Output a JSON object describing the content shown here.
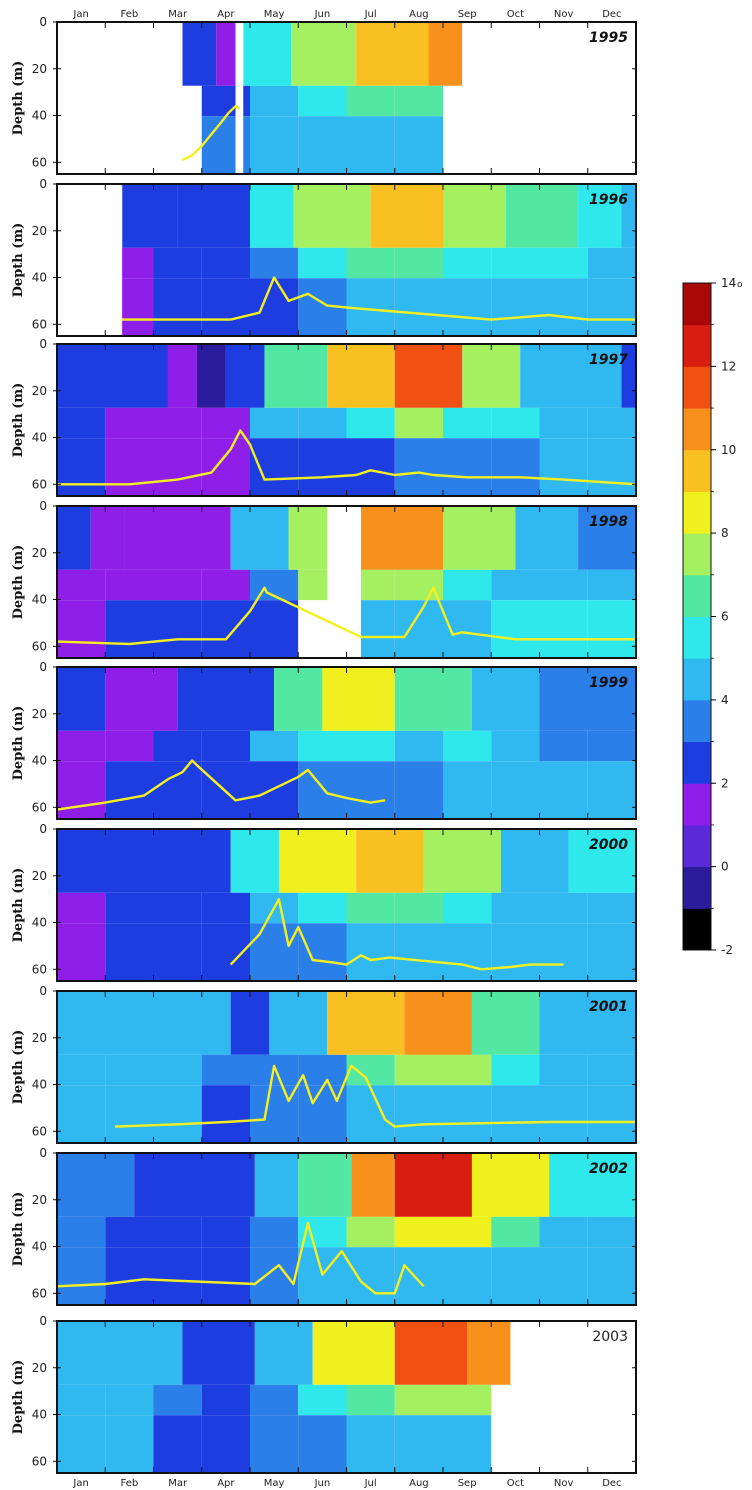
{
  "chart_data": {
    "type": "heatmap",
    "description_axes": {
      "xlabel": "",
      "ylabel": "Depth (m)",
      "ylim": [
        0,
        65
      ]
    },
    "months": [
      "Jan",
      "Feb",
      "Mar",
      "Apr",
      "May",
      "Jun",
      "Jul",
      "Aug",
      "Sep",
      "Oct",
      "Nov",
      "Dec"
    ],
    "depth_ticks": [
      0,
      20,
      40,
      60
    ],
    "colorbar": {
      "min": -2,
      "max": 14,
      "step": 1,
      "tick_labels": [
        "14",
        "12",
        "10",
        "8",
        "6",
        "4",
        "2",
        "0",
        "-2"
      ],
      "unit_label": "o",
      "colors": [
        "#000000",
        "#2a1c9a",
        "#5a2ad8",
        "#8e1ee8",
        "#1e3de0",
        "#2b7fe8",
        "#30b8f0",
        "#2ee8ec",
        "#52e8a4",
        "#a4f060",
        "#f0f01e",
        "#f8c020",
        "#f8901c",
        "#f05012",
        "#d81e10",
        "#a80808"
      ]
    },
    "panels": [
      {
        "year": "1995",
        "italic": true,
        "segments": [
          [
            0,
            2.6,
            null
          ],
          [
            2.6,
            3.3,
            2
          ],
          [
            3.3,
            3.7,
            1
          ],
          [
            3.7,
            3.86,
            null
          ],
          [
            3.86,
            4.85,
            5
          ],
          [
            4.85,
            6.2,
            7
          ],
          [
            6.2,
            7.7,
            9
          ],
          [
            7.7,
            8.4,
            10
          ],
          [
            8.4,
            12,
            null
          ]
        ],
        "bottom_hi": [
          1.5,
          2.5,
          2.5,
          3.5,
          4,
          4.3,
          4.6,
          4.9,
          null,
          null,
          null,
          null
        ],
        "line": [
          [
            2.6,
            59
          ],
          [
            2.8,
            57
          ],
          [
            3.0,
            53
          ],
          [
            3.2,
            48
          ],
          [
            3.4,
            43
          ],
          [
            3.55,
            39
          ],
          [
            3.7,
            36
          ],
          [
            3.78,
            37
          ]
        ]
      },
      {
        "year": "1996",
        "italic": true,
        "segments": [
          [
            0,
            1.35,
            null
          ],
          [
            1.35,
            2.5,
            2
          ],
          [
            2.5,
            4.0,
            2
          ],
          [
            4.0,
            4.9,
            5
          ],
          [
            4.9,
            6.5,
            7
          ],
          [
            6.5,
            8.0,
            9
          ],
          [
            8.0,
            9.3,
            7
          ],
          [
            9.3,
            10.8,
            6
          ],
          [
            10.8,
            11.7,
            5
          ],
          [
            11.7,
            12,
            4
          ]
        ],
        "bottom_hi": [
          null,
          1,
          2,
          2,
          2.5,
          3,
          4,
          4.3,
          4.6,
          4.8,
          4.9,
          4.9
        ],
        "line": [
          [
            1.35,
            58
          ],
          [
            2.2,
            58
          ],
          [
            2.9,
            58
          ],
          [
            3.6,
            58
          ],
          [
            4.2,
            55
          ],
          [
            4.5,
            40
          ],
          [
            4.8,
            50
          ],
          [
            5.2,
            47
          ],
          [
            5.6,
            52
          ],
          [
            6.1,
            53
          ],
          [
            9.0,
            58
          ],
          [
            10.2,
            56
          ],
          [
            11.0,
            58
          ],
          [
            12,
            58
          ]
        ]
      },
      {
        "year": "1997",
        "italic": true,
        "segments": [
          [
            0,
            2.3,
            2
          ],
          [
            2.3,
            2.9,
            1
          ],
          [
            2.9,
            3.5,
            -1
          ],
          [
            3.5,
            4.3,
            2
          ],
          [
            4.3,
            5.6,
            6
          ],
          [
            5.6,
            7.0,
            9
          ],
          [
            7.0,
            8.4,
            11
          ],
          [
            8.4,
            9.6,
            7
          ],
          [
            9.6,
            11.7,
            4
          ],
          [
            11.7,
            12,
            2
          ]
        ],
        "bottom_hi": [
          2,
          1.5,
          1,
          1,
          2,
          2,
          2.5,
          3,
          3.5,
          3.5,
          4,
          4.5
        ],
        "line": [
          [
            0,
            60
          ],
          [
            1.5,
            60
          ],
          [
            2.5,
            58
          ],
          [
            3.2,
            55
          ],
          [
            3.6,
            45
          ],
          [
            3.8,
            37
          ],
          [
            4.0,
            43
          ],
          [
            4.3,
            58
          ],
          [
            5.5,
            57
          ],
          [
            6.2,
            56
          ],
          [
            6.5,
            54
          ],
          [
            7.0,
            56
          ],
          [
            7.5,
            55
          ],
          [
            7.8,
            56
          ],
          [
            8.5,
            57
          ],
          [
            9.0,
            57
          ],
          [
            9.6,
            57
          ],
          [
            10.5,
            58
          ],
          [
            12,
            60
          ]
        ]
      },
      {
        "year": "1998",
        "italic": true,
        "segments": [
          [
            0,
            0.7,
            2
          ],
          [
            0.7,
            1.4,
            1
          ],
          [
            1.4,
            3.6,
            1
          ],
          [
            3.6,
            4.8,
            4
          ],
          [
            4.8,
            5.6,
            7
          ],
          [
            5.6,
            6.3,
            null
          ],
          [
            6.3,
            8.0,
            10
          ],
          [
            8.0,
            9.5,
            7
          ],
          [
            9.5,
            10.8,
            4
          ],
          [
            10.8,
            12,
            3
          ]
        ],
        "bottom_hi": [
          1.5,
          2,
          2,
          2,
          2.5,
          null,
          4.6,
          4.7,
          4.8,
          5,
          5,
          5
        ],
        "line": [
          [
            0,
            58
          ],
          [
            1.5,
            59
          ],
          [
            2.5,
            57
          ],
          [
            3.5,
            57
          ],
          [
            4.0,
            45
          ],
          [
            4.3,
            35
          ],
          [
            4.35,
            37
          ],
          [
            6.3,
            56
          ],
          [
            7.2,
            56
          ],
          [
            7.6,
            43
          ],
          [
            7.8,
            35
          ],
          [
            8.2,
            55
          ],
          [
            8.4,
            54
          ],
          [
            9.5,
            57
          ],
          [
            10.5,
            57
          ],
          [
            12,
            57
          ]
        ]
      },
      {
        "year": "1999",
        "italic": true,
        "segments": [
          [
            0,
            1.0,
            2
          ],
          [
            1.0,
            2.5,
            1
          ],
          [
            2.5,
            4.5,
            2
          ],
          [
            4.5,
            5.5,
            6
          ],
          [
            5.5,
            7.0,
            8
          ],
          [
            7.0,
            8.6,
            6
          ],
          [
            8.6,
            10.0,
            4
          ],
          [
            10.0,
            12,
            3
          ]
        ],
        "bottom_hi": [
          1.5,
          2,
          2,
          2,
          2.5,
          3,
          3.5,
          3.5,
          4,
          4.2,
          4.2,
          4.2
        ],
        "line": [
          [
            0,
            61
          ],
          [
            1.0,
            58
          ],
          [
            1.8,
            55
          ],
          [
            2.3,
            48
          ],
          [
            2.6,
            45
          ],
          [
            2.8,
            40
          ],
          [
            2.9,
            42
          ],
          [
            3.7,
            57
          ],
          [
            4.2,
            55
          ],
          [
            5.0,
            47
          ],
          [
            5.2,
            44
          ],
          [
            5.6,
            54
          ],
          [
            6.0,
            56
          ],
          [
            6.5,
            58
          ],
          [
            6.8,
            57
          ]
        ]
      },
      {
        "year": "2000",
        "italic": true,
        "segments": [
          [
            0,
            3.6,
            2
          ],
          [
            3.6,
            4.6,
            5
          ],
          [
            4.6,
            6.2,
            8
          ],
          [
            6.2,
            7.6,
            9
          ],
          [
            7.6,
            9.2,
            7
          ],
          [
            9.2,
            10.6,
            4
          ],
          [
            10.6,
            12,
            5
          ]
        ],
        "bottom_hi": [
          1.5,
          2,
          2,
          2,
          3,
          3,
          4,
          4.5,
          4.5,
          4.5,
          4.6,
          4.7
        ],
        "line": [
          [
            3.6,
            58
          ],
          [
            4.2,
            45
          ],
          [
            4.6,
            30
          ],
          [
            4.8,
            50
          ],
          [
            5.0,
            42
          ],
          [
            5.3,
            56
          ],
          [
            5.7,
            57
          ],
          [
            6.0,
            58
          ],
          [
            6.3,
            54
          ],
          [
            6.5,
            56
          ],
          [
            6.9,
            55
          ],
          [
            8.4,
            58
          ],
          [
            8.8,
            60
          ],
          [
            9.4,
            59
          ],
          [
            9.8,
            58
          ],
          [
            10.5,
            58
          ]
        ]
      },
      {
        "year": "2001",
        "italic": true,
        "segments": [
          [
            0,
            2.0,
            4
          ],
          [
            2.0,
            3.6,
            4
          ],
          [
            3.6,
            4.4,
            2
          ],
          [
            4.4,
            5.6,
            4
          ],
          [
            5.6,
            7.2,
            9
          ],
          [
            7.2,
            8.6,
            10
          ],
          [
            8.6,
            10.0,
            6
          ],
          [
            10.0,
            12,
            4
          ]
        ],
        "bottom_hi": [
          4.6,
          4.6,
          4.6,
          2,
          3,
          3.5,
          4.2,
          4.5,
          4.5,
          4.5,
          4.6,
          4.6
        ],
        "line": [
          [
            1.2,
            58
          ],
          [
            2.5,
            57
          ],
          [
            3.5,
            56
          ],
          [
            4.3,
            55
          ],
          [
            4.5,
            32
          ],
          [
            4.8,
            47
          ],
          [
            5.1,
            36
          ],
          [
            5.3,
            48
          ],
          [
            5.6,
            38
          ],
          [
            5.8,
            47
          ],
          [
            6.1,
            32
          ],
          [
            6.4,
            37
          ],
          [
            6.8,
            55
          ],
          [
            7.0,
            58
          ],
          [
            7.6,
            57
          ],
          [
            10.2,
            56
          ],
          [
            12,
            56
          ]
        ]
      },
      {
        "year": "2002",
        "italic": true,
        "segments": [
          [
            0,
            1.6,
            3
          ],
          [
            1.6,
            4.1,
            2
          ],
          [
            4.1,
            5.0,
            4
          ],
          [
            5.0,
            6.1,
            6
          ],
          [
            6.1,
            7.0,
            10
          ],
          [
            7.0,
            8.6,
            12
          ],
          [
            8.6,
            10.2,
            8
          ],
          [
            10.2,
            12,
            5
          ]
        ],
        "bottom_hi": [
          3,
          2.5,
          2,
          2,
          3.5,
          4.2,
          4.5,
          4.6,
          4.6,
          4.6,
          4.6,
          4.6
        ],
        "line": [
          [
            0,
            57
          ],
          [
            1.0,
            56
          ],
          [
            1.8,
            54
          ],
          [
            4.1,
            56
          ],
          [
            4.6,
            48
          ],
          [
            4.9,
            56
          ],
          [
            5.2,
            30
          ],
          [
            5.5,
            52
          ],
          [
            5.9,
            42
          ],
          [
            6.3,
            55
          ],
          [
            6.6,
            60
          ],
          [
            7.0,
            60
          ],
          [
            7.2,
            48
          ],
          [
            7.6,
            57
          ]
        ]
      },
      {
        "year": "2003",
        "italic": false,
        "segments": [
          [
            0,
            2.6,
            4
          ],
          [
            2.6,
            4.1,
            2
          ],
          [
            4.1,
            5.3,
            4
          ],
          [
            5.3,
            7.0,
            8
          ],
          [
            7.0,
            8.5,
            11
          ],
          [
            8.5,
            9.4,
            10
          ],
          [
            9.4,
            12,
            null
          ]
        ],
        "bottom_hi": [
          4.5,
          4.3,
          2,
          2,
          3,
          3.5,
          4,
          4.2,
          4.3,
          null,
          null,
          null
        ],
        "line": []
      }
    ]
  }
}
